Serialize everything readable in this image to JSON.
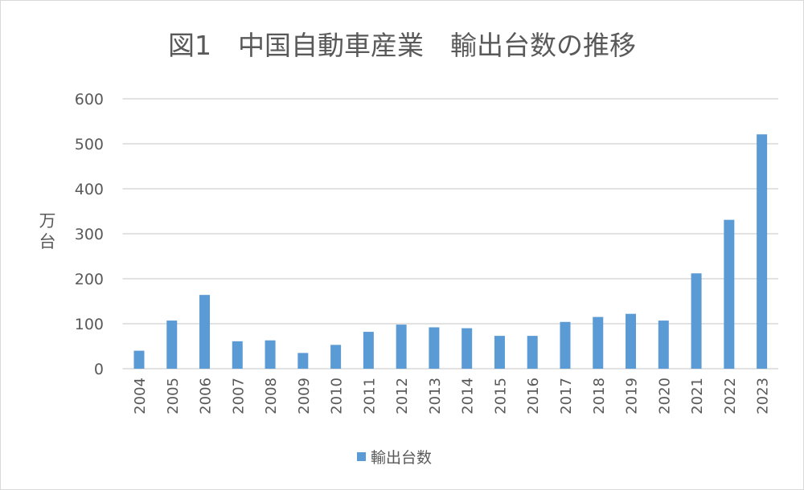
{
  "chart_data": {
    "type": "bar",
    "title": "図1　中国自動車産業　輸出台数の推移",
    "ylabel": "万台",
    "xlabel": "",
    "categories": [
      "2004",
      "2005",
      "2006",
      "2007",
      "2008",
      "2009",
      "2010",
      "2011",
      "2012",
      "2013",
      "2014",
      "2015",
      "2016",
      "2017",
      "2018",
      "2019",
      "2020",
      "2021",
      "2022",
      "2023"
    ],
    "series": [
      {
        "name": "輸出台数",
        "values": [
          40,
          107,
          164,
          61,
          63,
          35,
          53,
          82,
          98,
          92,
          90,
          73,
          73,
          104,
          115,
          122,
          107,
          212,
          331,
          521
        ],
        "color": "#5b9bd5"
      }
    ],
    "ylim": [
      0,
      600
    ],
    "yticks": [
      0,
      100,
      200,
      300,
      400,
      500,
      600
    ],
    "grid": true,
    "legend": "bottom"
  }
}
